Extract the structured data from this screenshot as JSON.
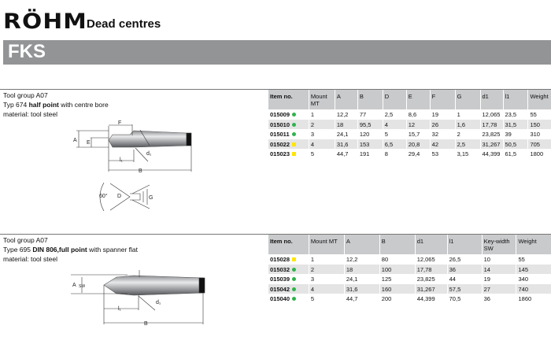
{
  "header": {
    "logo": "RÖHM",
    "title": "Dead centres",
    "product": "FKS"
  },
  "colors": {
    "band": "#939496",
    "in_stock": "#2fb34a",
    "on_request": "#ffe600"
  },
  "sections": [
    {
      "info": {
        "group": "Tool group A07",
        "type_prefix": "Typ 674 ",
        "type_bold": "half point",
        "type_suffix": " with centre bore",
        "material": "material: tool steel"
      },
      "drawing_labels": {
        "A": "A",
        "E": "E",
        "F": "F",
        "l1": "l₁",
        "d1": "d₁",
        "B": "B",
        "angle": "60°",
        "D": "D",
        "G": "G"
      },
      "columns": [
        "Item no.",
        "Mount MT",
        "A",
        "B",
        "D",
        "E",
        "F",
        "G",
        "d1",
        "l1",
        "Weight"
      ],
      "rows": [
        {
          "item": "015009",
          "status": "green",
          "cells": [
            "1",
            "12,2",
            "77",
            "2,5",
            "8,6",
            "19",
            "1",
            "12,065",
            "23,5",
            "55"
          ]
        },
        {
          "item": "015010",
          "status": "green",
          "cells": [
            "2",
            "18",
            "95,5",
            "4",
            "12",
            "26",
            "1,6",
            "17,78",
            "31,5",
            "150"
          ]
        },
        {
          "item": "015011",
          "status": "green",
          "cells": [
            "3",
            "24,1",
            "120",
            "5",
            "15,7",
            "32",
            "2",
            "23,825",
            "39",
            "310"
          ]
        },
        {
          "item": "015022",
          "status": "yellow",
          "cells": [
            "4",
            "31,6",
            "153",
            "6,5",
            "20,8",
            "42",
            "2,5",
            "31,267",
            "50,5",
            "705"
          ]
        },
        {
          "item": "015023",
          "status": "yellow",
          "cells": [
            "5",
            "44,7",
            "191",
            "8",
            "29,4",
            "53",
            "3,15",
            "44,399",
            "61,5",
            "1800"
          ]
        }
      ]
    },
    {
      "info": {
        "group": "Tool group A07",
        "type_prefix": "Type 695 ",
        "type_bold": "DIN 806,full point",
        "type_suffix": " with spanner flat",
        "material": "material: tool steel"
      },
      "drawing_labels": {
        "A": "A",
        "SW": "SW",
        "l1": "l₁",
        "d1": "d₁",
        "B": "B"
      },
      "columns": [
        "Item no.",
        "Mount MT",
        "A",
        "B",
        "d1",
        "l1",
        "Key-width SW",
        "Weight"
      ],
      "rows": [
        {
          "item": "015028",
          "status": "yellow",
          "cells": [
            "1",
            "12,2",
            "80",
            "12,065",
            "26,5",
            "10",
            "55"
          ]
        },
        {
          "item": "015032",
          "status": "green",
          "cells": [
            "2",
            "18",
            "100",
            "17,78",
            "36",
            "14",
            "145"
          ]
        },
        {
          "item": "015039",
          "status": "green",
          "cells": [
            "3",
            "24,1",
            "125",
            "23,825",
            "44",
            "19",
            "340"
          ]
        },
        {
          "item": "015042",
          "status": "green",
          "cells": [
            "4",
            "31,6",
            "160",
            "31,267",
            "57,5",
            "27",
            "740"
          ]
        },
        {
          "item": "015040",
          "status": "green",
          "cells": [
            "5",
            "44,7",
            "200",
            "44,399",
            "70,5",
            "36",
            "1860"
          ]
        }
      ]
    }
  ]
}
